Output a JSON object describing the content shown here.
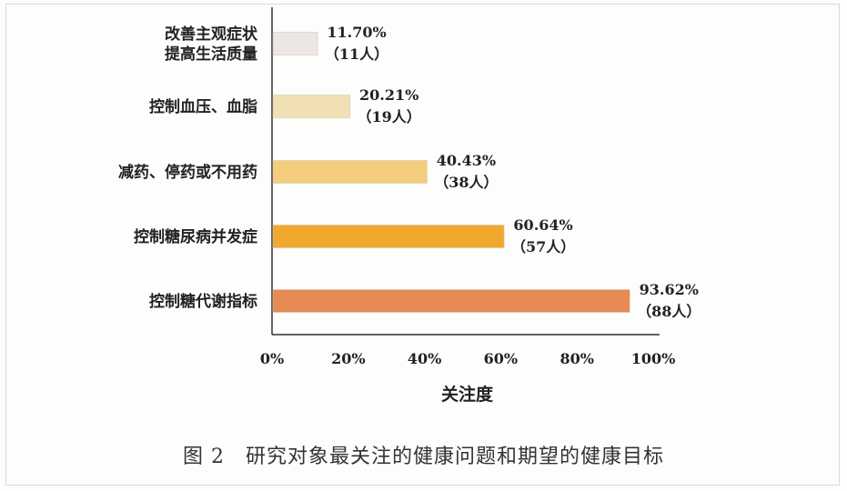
{
  "chart_data": {
    "type": "bar",
    "orientation": "horizontal",
    "categories": [
      [
        "改善主观症状",
        "提高生活质量"
      ],
      [
        "控制血压、血脂"
      ],
      [
        "减药、停药或不用药"
      ],
      [
        "控制糖尿病并发症"
      ],
      [
        "控制糖代谢指标"
      ]
    ],
    "values": [
      11.7,
      20.21,
      40.43,
      60.64,
      93.62
    ],
    "value_labels": [
      "11.70%",
      "20.21%",
      "40.43%",
      "60.64%",
      "93.62%"
    ],
    "count_labels": [
      "（11人）",
      "（19人）",
      "（38人）",
      "（57人）",
      "（88人）"
    ],
    "colors": [
      "#ece6e7",
      "#f1e0b4",
      "#f4cd7d",
      "#f0a92d",
      "#e88a55"
    ],
    "xlim": [
      0,
      100
    ],
    "xticks": [
      "0%",
      "20%",
      "40%",
      "60%",
      "80%",
      "100%"
    ],
    "xlabel": "关注度",
    "grid": false
  },
  "caption": "图 2　研究对象最关注的健康问题和期望的健康目标"
}
